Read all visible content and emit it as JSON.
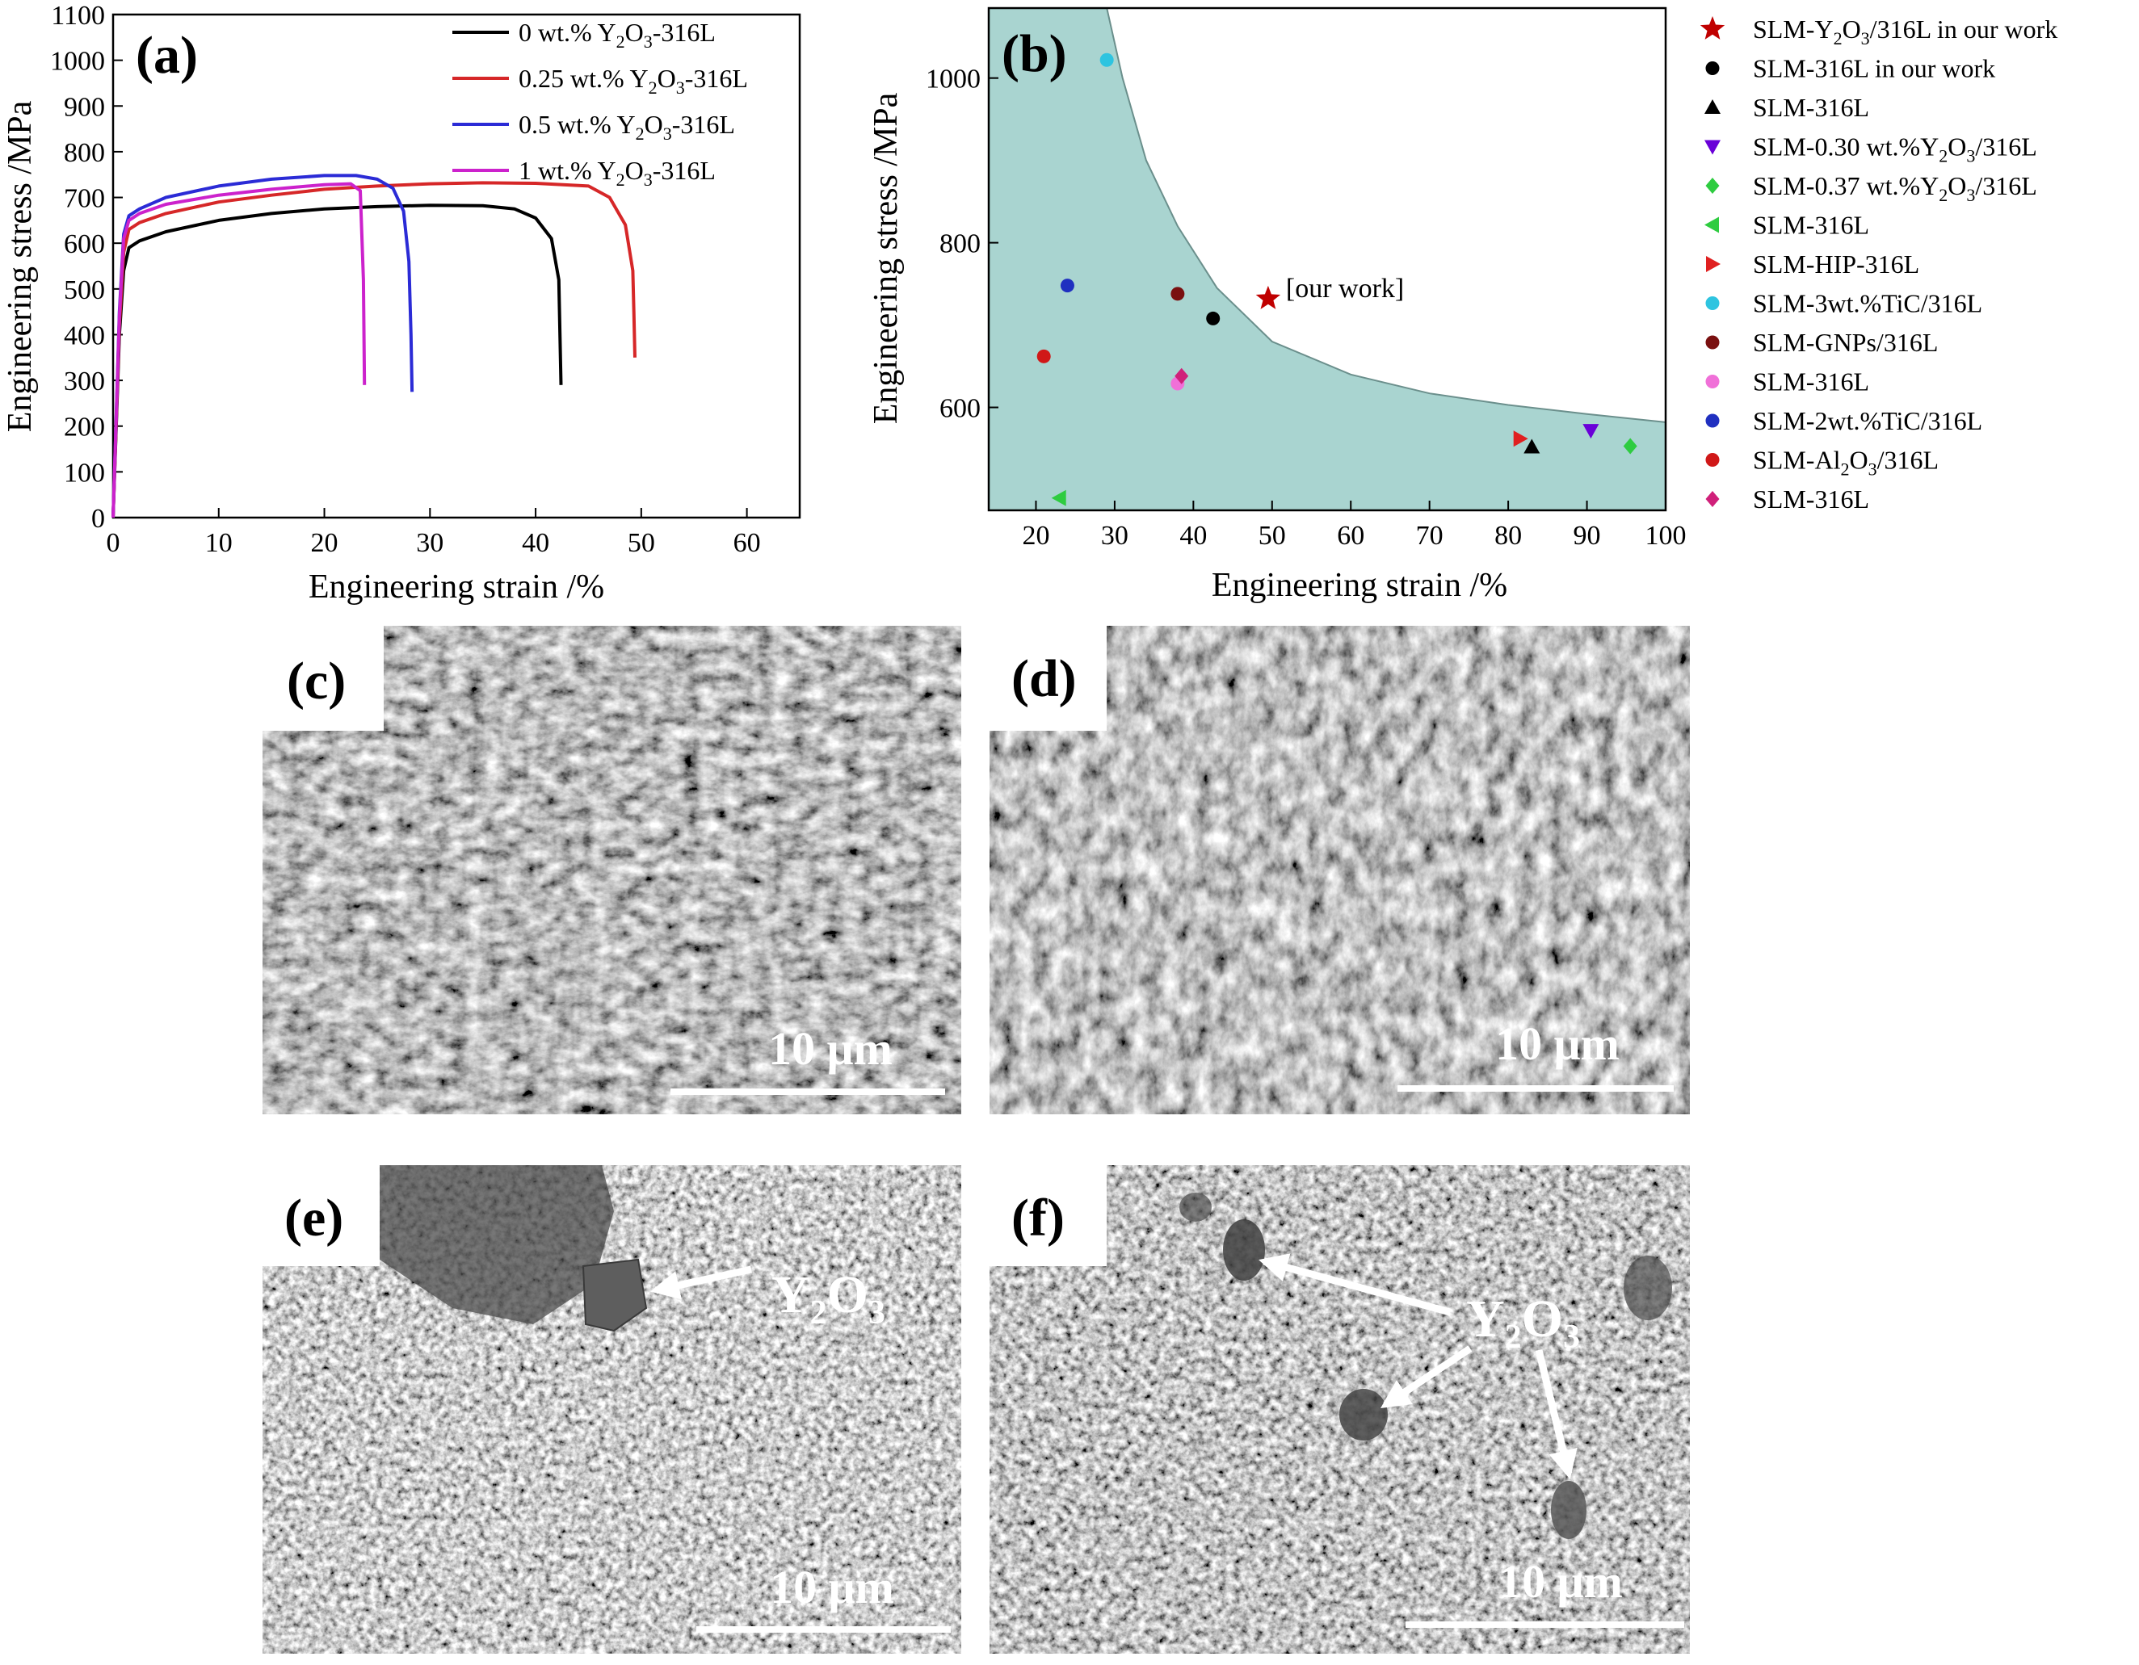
{
  "panels": {
    "a": {
      "label": "(a)"
    },
    "b": {
      "label": "(b)"
    },
    "c": {
      "label": "(c)",
      "scalebar": "10 μm"
    },
    "d": {
      "label": "(d)",
      "scalebar": "10 μm"
    },
    "e": {
      "label": "(e)",
      "scalebar": "10 μm",
      "annotation": {
        "main": "Y",
        "sub1": "2",
        "mid": "O",
        "sub2": "3"
      }
    },
    "f": {
      "label": "(f)",
      "scalebar": "10 μm",
      "annotation": {
        "main": "Y",
        "sub1": "2",
        "mid": "O",
        "sub2": "3"
      }
    }
  },
  "chart_data": [
    {
      "type": "line",
      "panel": "a",
      "xlabel": "Engineering strain /%",
      "ylabel": "Engineering stress /MPa",
      "xlim": [
        0,
        65
      ],
      "ylim": [
        0,
        1100
      ],
      "xticks": [
        0,
        10,
        20,
        30,
        40,
        50,
        60
      ],
      "yticks": [
        0,
        100,
        200,
        300,
        400,
        500,
        600,
        700,
        800,
        900,
        1000,
        1100
      ],
      "legend_position": "top-right",
      "series": [
        {
          "name_parts": [
            "0 wt.% Y",
            "2",
            "O",
            "3",
            "-316L"
          ],
          "color": "#000000",
          "x": [
            0,
            0.6,
            1.0,
            1.5,
            2.5,
            5,
            10,
            15,
            20,
            25,
            30,
            35,
            38,
            40,
            41.5,
            42.2,
            42.3,
            42.4
          ],
          "y": [
            0,
            400,
            540,
            590,
            605,
            625,
            650,
            665,
            675,
            680,
            683,
            682,
            675,
            655,
            610,
            520,
            400,
            290
          ]
        },
        {
          "name_parts": [
            "0.25 wt.% Y",
            "2",
            "O",
            "3",
            "-316L"
          ],
          "color": "#d62728",
          "x": [
            0,
            0.6,
            1.0,
            1.5,
            2.5,
            5,
            10,
            15,
            20,
            25,
            30,
            35,
            40,
            45,
            47,
            48.5,
            49.2,
            49.3,
            49.4
          ],
          "y": [
            0,
            420,
            580,
            630,
            645,
            665,
            690,
            705,
            718,
            725,
            730,
            732,
            731,
            725,
            700,
            640,
            540,
            450,
            350
          ]
        },
        {
          "name_parts": [
            "0.5 wt.% Y",
            "2",
            "O",
            "3",
            "-316L"
          ],
          "color": "#2b2bd6",
          "x": [
            0,
            0.6,
            1.0,
            1.5,
            2.5,
            5,
            10,
            15,
            20,
            23,
            25,
            26.5,
            27.5,
            28.0,
            28.2,
            28.3
          ],
          "y": [
            0,
            450,
            620,
            660,
            675,
            700,
            725,
            740,
            748,
            748,
            740,
            720,
            670,
            560,
            400,
            275
          ]
        },
        {
          "name_parts": [
            "1 wt.% Y",
            "2",
            "O",
            "3",
            "-316L"
          ],
          "color": "#cc22cc",
          "x": [
            0,
            0.6,
            1.0,
            1.5,
            2.5,
            5,
            10,
            15,
            20,
            22.5,
            23.4,
            23.7,
            23.8
          ],
          "y": [
            0,
            440,
            610,
            650,
            665,
            685,
            705,
            718,
            728,
            730,
            715,
            520,
            290
          ]
        }
      ]
    },
    {
      "type": "scatter",
      "panel": "b",
      "xlabel": "Engineering strain /%",
      "ylabel": "Engineering stress /MPa",
      "xlim": [
        14,
        100
      ],
      "ylim": [
        475,
        1085
      ],
      "xticks": [
        20,
        30,
        40,
        50,
        60,
        70,
        80,
        90,
        100
      ],
      "yticks": [
        600,
        800,
        1000
      ],
      "annotation": "[our work]",
      "legend_position": "outside-right",
      "boundary": {
        "x": [
          29,
          31,
          34,
          38,
          43,
          50,
          60,
          70,
          80,
          90,
          100
        ],
        "y": [
          1085,
          1000,
          900,
          820,
          745,
          680,
          640,
          617,
          603,
          592,
          582
        ]
      },
      "series": [
        {
          "name_parts": [
            "SLM-Y",
            "2",
            "O",
            "3",
            "/316L in our work"
          ],
          "marker": "star",
          "color": "#c00000",
          "x": [
            49.5
          ],
          "y": [
            732
          ]
        },
        {
          "name_parts": [
            "SLM-316L in our work"
          ],
          "marker": "circle",
          "color": "#000000",
          "x": [
            42.5
          ],
          "y": [
            708
          ]
        },
        {
          "name_parts": [
            "SLM-316L"
          ],
          "marker": "triangle-up",
          "color": "#000000",
          "x": [
            83
          ],
          "y": [
            552
          ]
        },
        {
          "name_parts": [
            "SLM-0.30 wt.%Y",
            "2",
            "O",
            "3",
            "/316L"
          ],
          "marker": "triangle-down",
          "color": "#6a00d8",
          "x": [
            90.5
          ],
          "y": [
            572
          ]
        },
        {
          "name_parts": [
            "SLM-0.37 wt.%Y",
            "2",
            "O",
            "3",
            "/316L"
          ],
          "marker": "diamond",
          "color": "#2ecc40",
          "x": [
            95.5
          ],
          "y": [
            553
          ]
        },
        {
          "name_parts": [
            "SLM-316L"
          ],
          "marker": "triangle-left",
          "color": "#2ecc40",
          "x": [
            23
          ],
          "y": [
            490
          ]
        },
        {
          "name_parts": [
            "SLM-HIP-316L"
          ],
          "marker": "triangle-right",
          "color": "#e02020",
          "x": [
            81.5
          ],
          "y": [
            562
          ]
        },
        {
          "name_parts": [
            "SLM-3wt.%TiC/316L"
          ],
          "marker": "circle",
          "color": "#2ec4e0",
          "x": [
            29
          ],
          "y": [
            1022
          ]
        },
        {
          "name_parts": [
            "SLM-GNPs/316L"
          ],
          "marker": "circle",
          "color": "#7a1010",
          "x": [
            38
          ],
          "y": [
            738
          ]
        },
        {
          "name_parts": [
            "SLM-316L"
          ],
          "marker": "circle",
          "color": "#f070d8",
          "x": [
            38
          ],
          "y": [
            629
          ]
        },
        {
          "name_parts": [
            "SLM-2wt.%TiC/316L"
          ],
          "marker": "circle",
          "color": "#2030c0",
          "x": [
            24
          ],
          "y": [
            748
          ]
        },
        {
          "name_parts": [
            "SLM-Al",
            "2",
            "O",
            "3",
            "/316L"
          ],
          "marker": "circle",
          "color": "#d01818",
          "x": [
            21
          ],
          "y": [
            662
          ]
        },
        {
          "name_parts": [
            "SLM-316L"
          ],
          "marker": "diamond",
          "color": "#d0207a",
          "x": [
            38.5
          ],
          "y": [
            638
          ]
        }
      ]
    }
  ]
}
